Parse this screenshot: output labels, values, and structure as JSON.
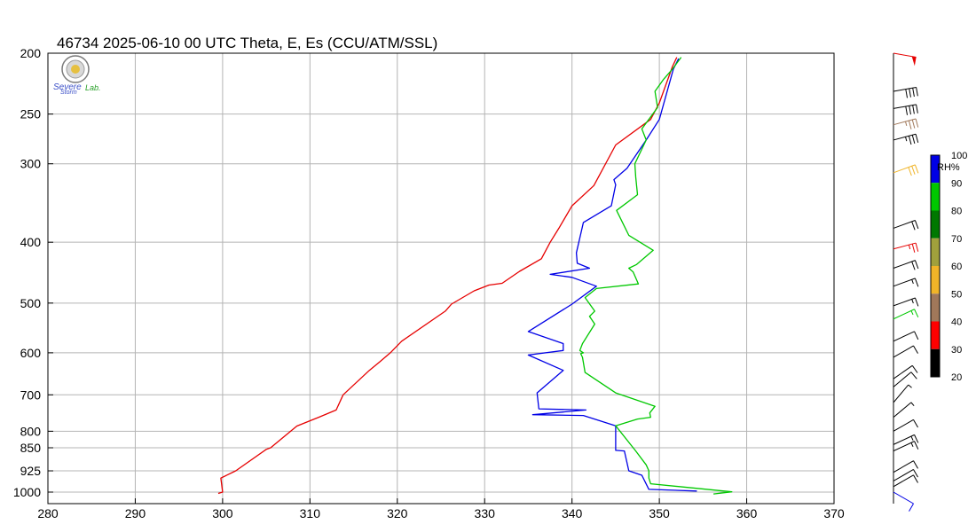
{
  "title": "46734  2025-06-10 00 UTC  Theta, E, Es (CCU/ATM/SSL)",
  "logo": {
    "text_line1": "Severe",
    "text_line2": "Storm",
    "text_line3": "Lab."
  },
  "colors": {
    "theta": "#e60000",
    "theta_e": "#0000e6",
    "theta_es": "#00c800",
    "grid": "#b4b4b4"
  },
  "chart_data": {
    "type": "line",
    "title": "46734  2025-06-10 00 UTC  Theta, E, Es (CCU/ATM/SSL)",
    "xlabel": "",
    "ylabel": "",
    "xlim": [
      280,
      370
    ],
    "ylim_pressure": [
      1000,
      200
    ],
    "y_scale": "log-pressure",
    "x_ticks": [
      "280",
      "290",
      "300",
      "310",
      "320",
      "330",
      "340",
      "350",
      "360",
      "370"
    ],
    "y_ticks": [
      "200",
      "250",
      "300",
      "400",
      "500",
      "600",
      "700",
      "800",
      "850",
      "925",
      "1000"
    ],
    "grid": true,
    "series": [
      {
        "color": "#e60000",
        "points": [
          [
            299.5,
            1005
          ],
          [
            300.0,
            1000
          ],
          [
            299.8,
            950
          ],
          [
            301.5,
            925
          ],
          [
            305.0,
            855
          ],
          [
            305.5,
            850
          ],
          [
            308.5,
            785
          ],
          [
            311.0,
            760
          ],
          [
            313.0,
            740
          ],
          [
            313.8,
            700
          ],
          [
            316.8,
            640
          ],
          [
            318.0,
            620
          ],
          [
            319.2,
            600
          ],
          [
            320.5,
            575
          ],
          [
            325.5,
            515
          ],
          [
            326.2,
            502
          ],
          [
            328.8,
            478
          ],
          [
            330.5,
            468
          ],
          [
            332.0,
            465
          ],
          [
            334.0,
            445
          ],
          [
            336.5,
            425
          ],
          [
            337.5,
            400
          ],
          [
            338.5,
            380
          ],
          [
            340.0,
            350
          ],
          [
            342.5,
            325
          ],
          [
            345.0,
            280
          ],
          [
            349.0,
            255
          ],
          [
            350.0,
            240
          ],
          [
            351.5,
            210
          ],
          [
            352.0,
            203
          ]
        ]
      },
      {
        "color": "#0000e6",
        "points": [
          [
            354.3,
            996
          ],
          [
            348.8,
            990
          ],
          [
            348.0,
            940
          ],
          [
            346.5,
            925
          ],
          [
            346.0,
            860
          ],
          [
            345.0,
            858
          ],
          [
            345.0,
            784
          ],
          [
            341.3,
            755
          ],
          [
            335.5,
            753
          ],
          [
            341.6,
            740
          ],
          [
            336.2,
            737
          ],
          [
            336.0,
            695
          ],
          [
            339.0,
            640
          ],
          [
            335.0,
            605
          ],
          [
            339.0,
            595
          ],
          [
            339.0,
            580
          ],
          [
            335.0,
            555
          ],
          [
            340.0,
            502
          ],
          [
            342.8,
            470
          ],
          [
            340.0,
            455
          ],
          [
            337.5,
            450
          ],
          [
            342.0,
            440
          ],
          [
            340.6,
            432
          ],
          [
            340.5,
            416
          ],
          [
            341.3,
            372
          ],
          [
            344.5,
            350
          ],
          [
            345.0,
            324
          ],
          [
            344.8,
            318
          ],
          [
            346.3,
            305
          ],
          [
            348.5,
            275
          ],
          [
            350.0,
            255
          ],
          [
            351.6,
            212
          ],
          [
            352.2,
            204
          ]
        ]
      },
      {
        "color": "#00c800",
        "points": [
          [
            356.2,
            1007
          ],
          [
            358.3,
            999
          ],
          [
            349.0,
            970
          ],
          [
            348.8,
            950
          ],
          [
            348.8,
            925
          ],
          [
            348.5,
            905
          ],
          [
            347.3,
            860
          ],
          [
            345.0,
            784
          ],
          [
            347.5,
            765
          ],
          [
            349.0,
            760
          ],
          [
            348.9,
            748
          ],
          [
            349.5,
            730
          ],
          [
            345.0,
            695
          ],
          [
            341.5,
            645
          ],
          [
            341.2,
            610
          ],
          [
            341.0,
            602
          ],
          [
            341.3,
            600
          ],
          [
            340.9,
            595
          ],
          [
            341.2,
            580
          ],
          [
            342.6,
            540
          ],
          [
            342.0,
            525
          ],
          [
            342.6,
            515
          ],
          [
            341.5,
            490
          ],
          [
            342.8,
            474
          ],
          [
            347.6,
            466
          ],
          [
            347.0,
            446
          ],
          [
            346.5,
            440
          ],
          [
            347.4,
            434
          ],
          [
            349.3,
            412
          ],
          [
            346.5,
            390
          ],
          [
            345.1,
            356
          ],
          [
            347.5,
            336
          ],
          [
            347.3,
            315
          ],
          [
            347.2,
            300
          ],
          [
            348.5,
            275
          ],
          [
            348.0,
            264
          ],
          [
            349.8,
            244
          ],
          [
            349.5,
            230
          ],
          [
            350.5,
            220
          ],
          [
            351.5,
            212
          ],
          [
            352.5,
            203
          ]
        ]
      }
    ]
  },
  "wind_barbs": [
    {
      "p": 200,
      "dir": 280,
      "speed": 50,
      "color": "#e60000"
    },
    {
      "p": 230,
      "dir": 260,
      "speed": 40,
      "color": "#000000"
    },
    {
      "p": 245,
      "dir": 260,
      "speed": 40,
      "color": "#000000"
    },
    {
      "p": 260,
      "dir": 255,
      "speed": 35,
      "color": "#a0785a"
    },
    {
      "p": 275,
      "dir": 255,
      "speed": 35,
      "color": "#000000"
    },
    {
      "p": 310,
      "dir": 250,
      "speed": 30,
      "color": "#f0b428"
    },
    {
      "p": 380,
      "dir": 250,
      "speed": 20,
      "color": "#000000"
    },
    {
      "p": 410,
      "dir": 255,
      "speed": 25,
      "color": "#e60000"
    },
    {
      "p": 440,
      "dir": 250,
      "speed": 20,
      "color": "#000000"
    },
    {
      "p": 470,
      "dir": 250,
      "speed": 15,
      "color": "#000000"
    },
    {
      "p": 505,
      "dir": 250,
      "speed": 15,
      "color": "#000000"
    },
    {
      "p": 530,
      "dir": 245,
      "speed": 15,
      "color": "#00c800"
    },
    {
      "p": 575,
      "dir": 245,
      "speed": 10,
      "color": "#000000"
    },
    {
      "p": 610,
      "dir": 240,
      "speed": 10,
      "color": "#000000"
    },
    {
      "p": 660,
      "dir": 235,
      "speed": 10,
      "color": "#000000"
    },
    {
      "p": 680,
      "dir": 230,
      "speed": 10,
      "color": "#000000"
    },
    {
      "p": 720,
      "dir": 220,
      "speed": 5,
      "color": "#000000"
    },
    {
      "p": 760,
      "dir": 230,
      "speed": 5,
      "color": "#000000"
    },
    {
      "p": 800,
      "dir": 240,
      "speed": 10,
      "color": "#000000"
    },
    {
      "p": 840,
      "dir": 245,
      "speed": 15,
      "color": "#000000"
    },
    {
      "p": 860,
      "dir": 245,
      "speed": 15,
      "color": "#000000"
    },
    {
      "p": 930,
      "dir": 240,
      "speed": 10,
      "color": "#000000"
    },
    {
      "p": 960,
      "dir": 240,
      "speed": 10,
      "color": "#000000"
    },
    {
      "p": 980,
      "dir": 240,
      "speed": 10,
      "color": "#000000"
    },
    {
      "p": 1000,
      "dir": 300,
      "speed": 10,
      "color": "#0000e6"
    }
  ],
  "colorbar": {
    "label": "RH%",
    "ticks": [
      "100",
      "90",
      "80",
      "70",
      "60",
      "50",
      "40",
      "30",
      "20"
    ],
    "colors": [
      "#0000e6",
      "#00c800",
      "#007800",
      "#a0a03c",
      "#f0b428",
      "#a0785a",
      "#ff0000",
      "#000000"
    ]
  }
}
